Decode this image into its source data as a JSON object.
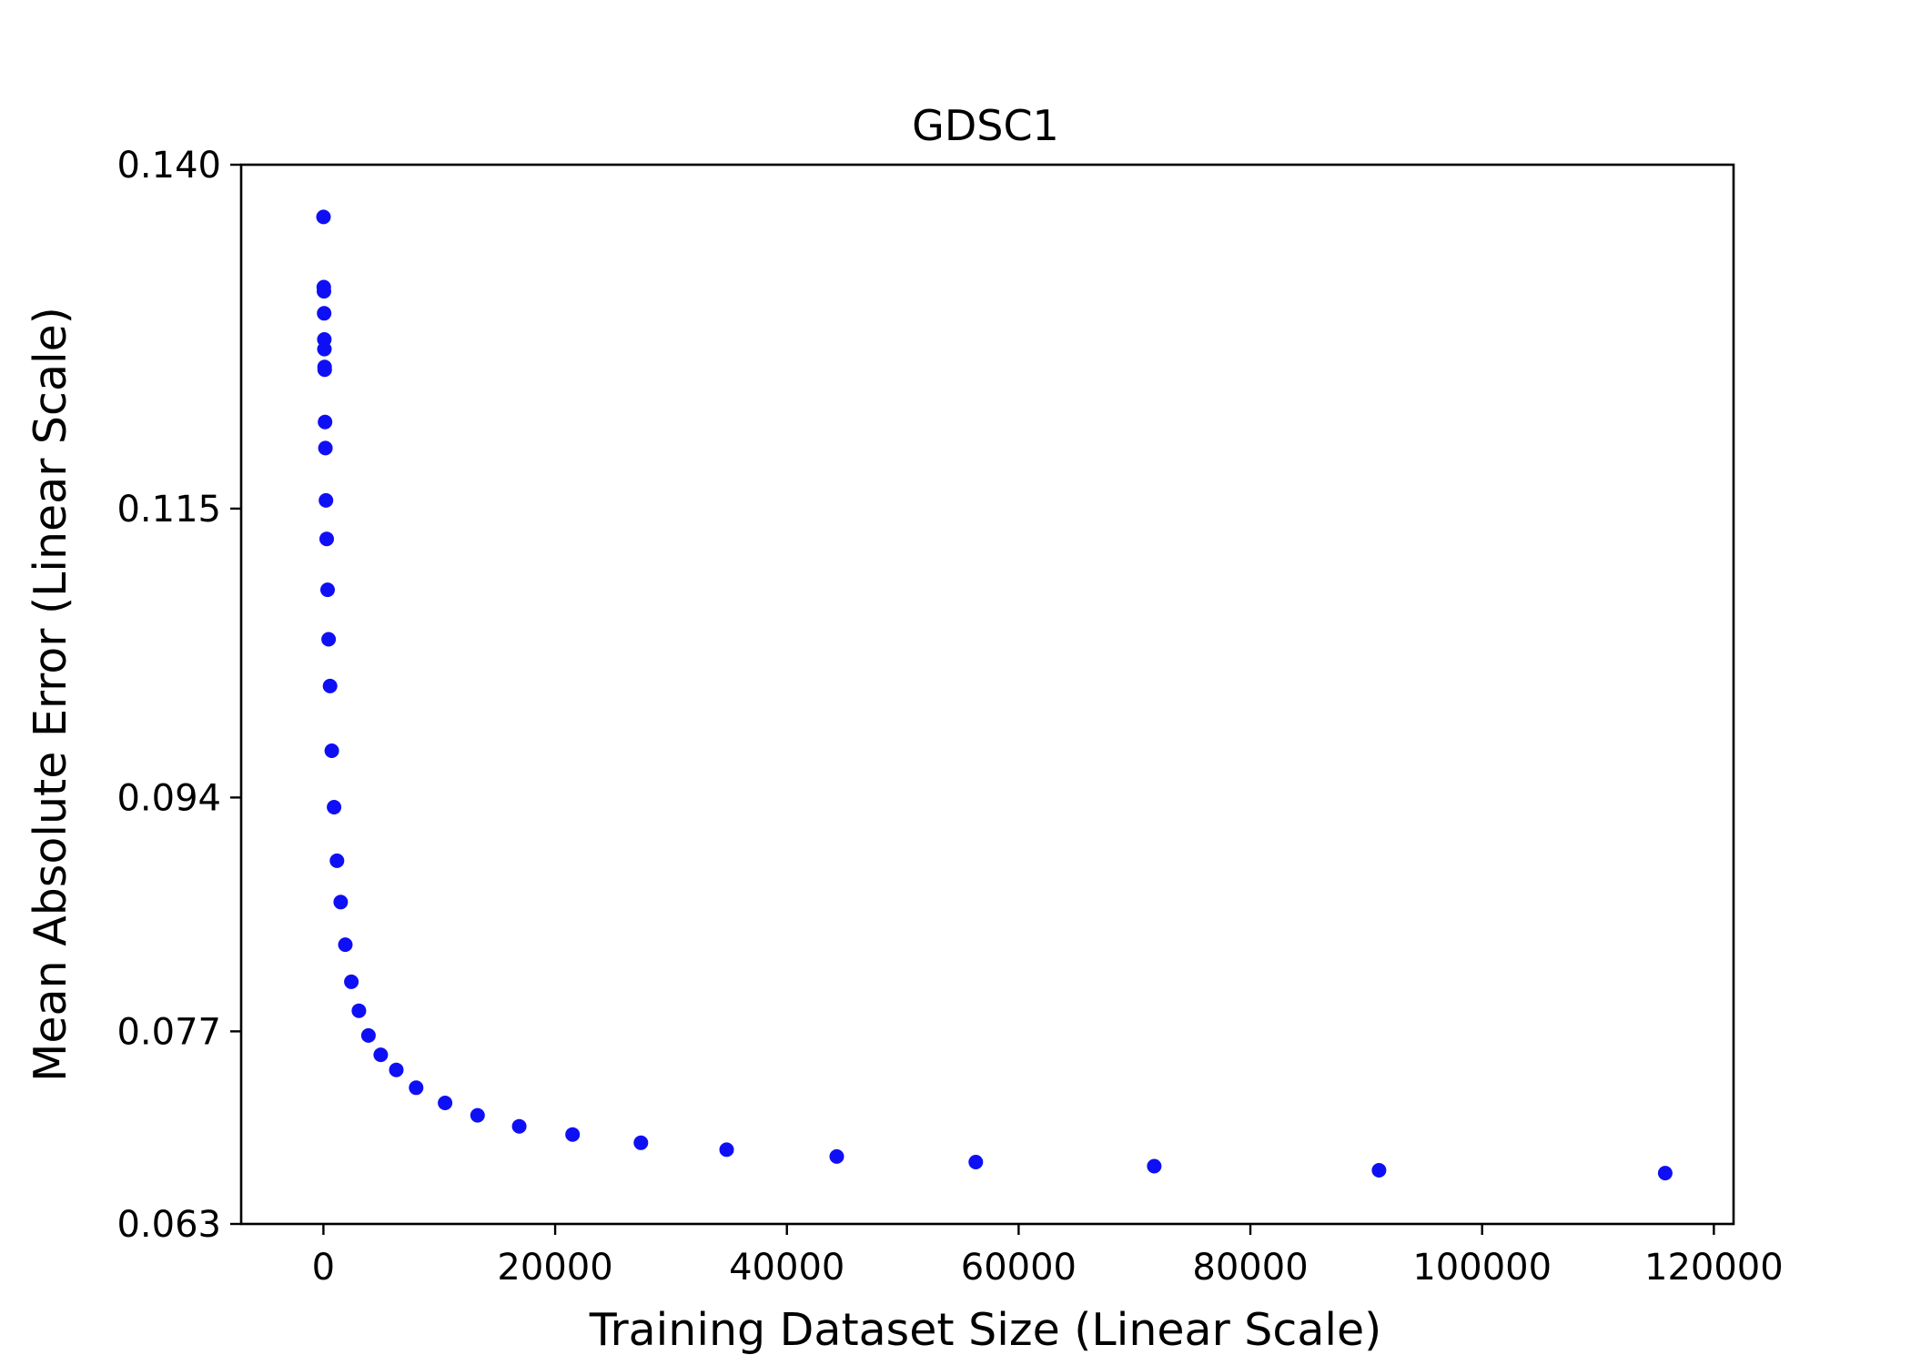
{
  "chart_data": {
    "type": "scatter",
    "title": "GDSC1",
    "xlabel": "Training Dataset Size (Linear Scale)",
    "ylabel": "Mean Absolute Error (Linear Scale)",
    "xlim": [
      -7100,
      121700
    ],
    "ylim": [
      0.063,
      0.14
    ],
    "x_ticks": [
      0,
      20000,
      40000,
      60000,
      80000,
      100000,
      120000
    ],
    "x_tick_labels": [
      "0",
      "20000",
      "40000",
      "60000",
      "80000",
      "100000",
      "120000"
    ],
    "y_ticks": [
      0.063,
      0.077,
      0.094,
      0.115,
      0.14
    ],
    "y_tick_labels": [
      "0.063",
      "0.077",
      "0.094",
      "0.115",
      "0.140"
    ],
    "grid": false,
    "marker_color": "#0f0ff5",
    "points": [
      {
        "x": 10,
        "y": 0.1362
      },
      {
        "x": 30,
        "y": 0.1311
      },
      {
        "x": 50,
        "y": 0.1308
      },
      {
        "x": 60,
        "y": 0.1292
      },
      {
        "x": 80,
        "y": 0.1273
      },
      {
        "x": 90,
        "y": 0.1266
      },
      {
        "x": 100,
        "y": 0.1253
      },
      {
        "x": 110,
        "y": 0.1251
      },
      {
        "x": 140,
        "y": 0.1213
      },
      {
        "x": 170,
        "y": 0.1194
      },
      {
        "x": 220,
        "y": 0.1156
      },
      {
        "x": 280,
        "y": 0.1128
      },
      {
        "x": 360,
        "y": 0.1091
      },
      {
        "x": 450,
        "y": 0.1055
      },
      {
        "x": 570,
        "y": 0.1021
      },
      {
        "x": 720,
        "y": 0.0974
      },
      {
        "x": 920,
        "y": 0.0933
      },
      {
        "x": 1170,
        "y": 0.0894
      },
      {
        "x": 1490,
        "y": 0.0864
      },
      {
        "x": 1890,
        "y": 0.0833
      },
      {
        "x": 2410,
        "y": 0.0806
      },
      {
        "x": 3060,
        "y": 0.0785
      },
      {
        "x": 3890,
        "y": 0.0767
      },
      {
        "x": 4950,
        "y": 0.0753
      },
      {
        "x": 6290,
        "y": 0.0742
      },
      {
        "x": 8000,
        "y": 0.0729
      },
      {
        "x": 10500,
        "y": 0.0718
      },
      {
        "x": 13300,
        "y": 0.0709
      },
      {
        "x": 16900,
        "y": 0.0701
      },
      {
        "x": 21500,
        "y": 0.0695
      },
      {
        "x": 27400,
        "y": 0.0689
      },
      {
        "x": 34800,
        "y": 0.0684
      },
      {
        "x": 44300,
        "y": 0.0679
      },
      {
        "x": 56300,
        "y": 0.0675
      },
      {
        "x": 71700,
        "y": 0.0672
      },
      {
        "x": 91100,
        "y": 0.0669
      },
      {
        "x": 115800,
        "y": 0.0667
      }
    ]
  }
}
